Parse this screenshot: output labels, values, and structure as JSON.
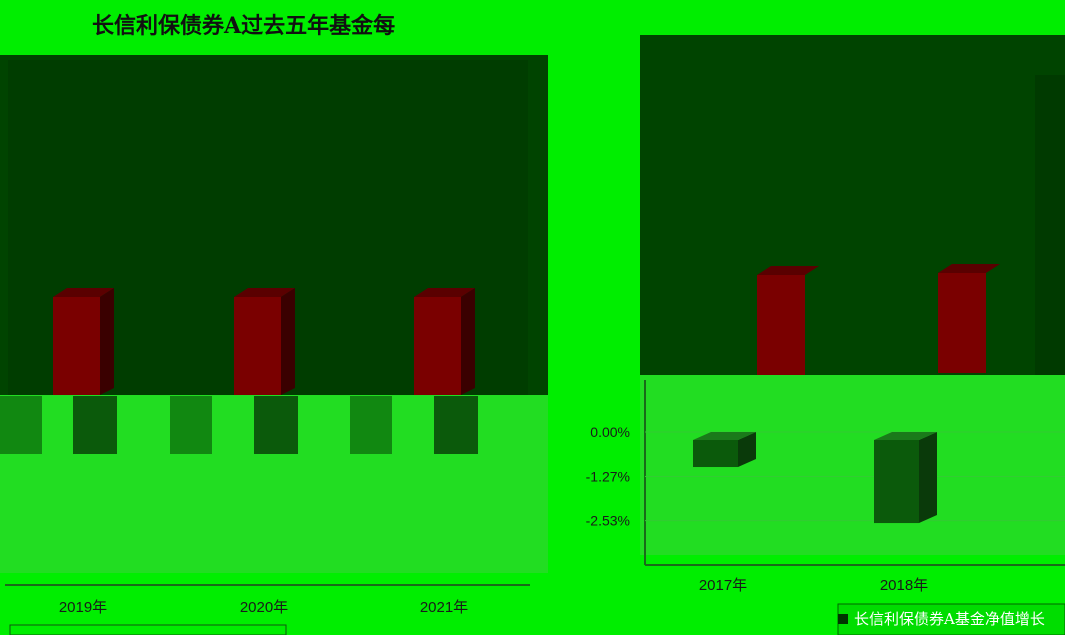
{
  "title": "长信利保债券A过去五年基金每",
  "legend_label": "长信利保债券A基金净值增长",
  "colors": {
    "background": "#00ee00",
    "dark_panel": "#004400",
    "bar_dark_red": "#7a0000",
    "bar_dark_green": "#0b5a0b",
    "axis_text": "#1a1a1a"
  },
  "chart_data": {
    "type": "bar",
    "title": "长信利保债券A过去五年基金每",
    "categories": [
      "2017年",
      "2018年",
      "2019年",
      "2020年",
      "2021年"
    ],
    "series": [
      {
        "name": "长信利保债券A基金净值增长",
        "values": [
          -1.0,
          -2.6,
          2.6,
          2.6,
          2.6
        ]
      }
    ],
    "y_ticks": [
      "-2.53%",
      "-1.27%",
      "0.00%"
    ],
    "ylim": [
      -3.0,
      9.0
    ],
    "xlabel": "",
    "ylabel": "",
    "legend_position": "bottom"
  }
}
